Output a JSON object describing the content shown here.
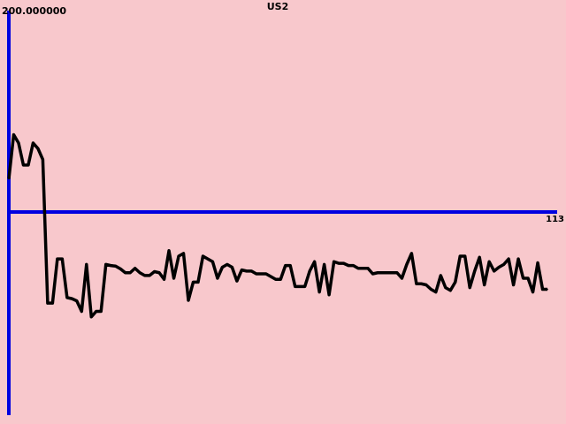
{
  "chart_data": {
    "type": "line",
    "title": "US2",
    "ymax_label": "200.000000",
    "xmax_label": "113",
    "xlim": [
      0,
      113
    ],
    "ylim": [
      -200,
      200
    ],
    "grid": false,
    "colors": {
      "background": "#f8c8cc",
      "axes": "#0000e0",
      "line": "#000000"
    },
    "series": [
      {
        "values": [
          60,
          140,
          125,
          85,
          85,
          125,
          115,
          95,
          -165,
          -165,
          -85,
          -85,
          -155,
          -157,
          -161,
          -180,
          -95,
          -190,
          -180,
          -180,
          -95,
          -97,
          -98,
          -103,
          -110,
          -110,
          -102,
          -110,
          -115,
          -115,
          -108,
          -110,
          -122,
          -70,
          -120,
          -80,
          -75,
          -160,
          -127,
          -127,
          -80,
          -85,
          -90,
          -120,
          -100,
          -95,
          -100,
          -125,
          -105,
          -107,
          -107,
          -112,
          -112,
          -112,
          -117,
          -122,
          -122,
          -97,
          -97,
          -135,
          -135,
          -135,
          -107,
          -90,
          -145,
          -95,
          -150,
          -90,
          -93,
          -93,
          -97,
          -97,
          -102,
          -102,
          -102,
          -112,
          -110,
          -110,
          -110,
          -110,
          -110,
          -120,
          -95,
          -75,
          -130,
          -130,
          -132,
          -140,
          -145,
          -115,
          -137,
          -142,
          -127,
          -80,
          -80,
          -137,
          -107,
          -82,
          -132,
          -90,
          -107,
          -100,
          -95,
          -85,
          -132,
          -85,
          -120,
          -120,
          -145,
          -92,
          -140,
          -140
        ]
      }
    ]
  }
}
